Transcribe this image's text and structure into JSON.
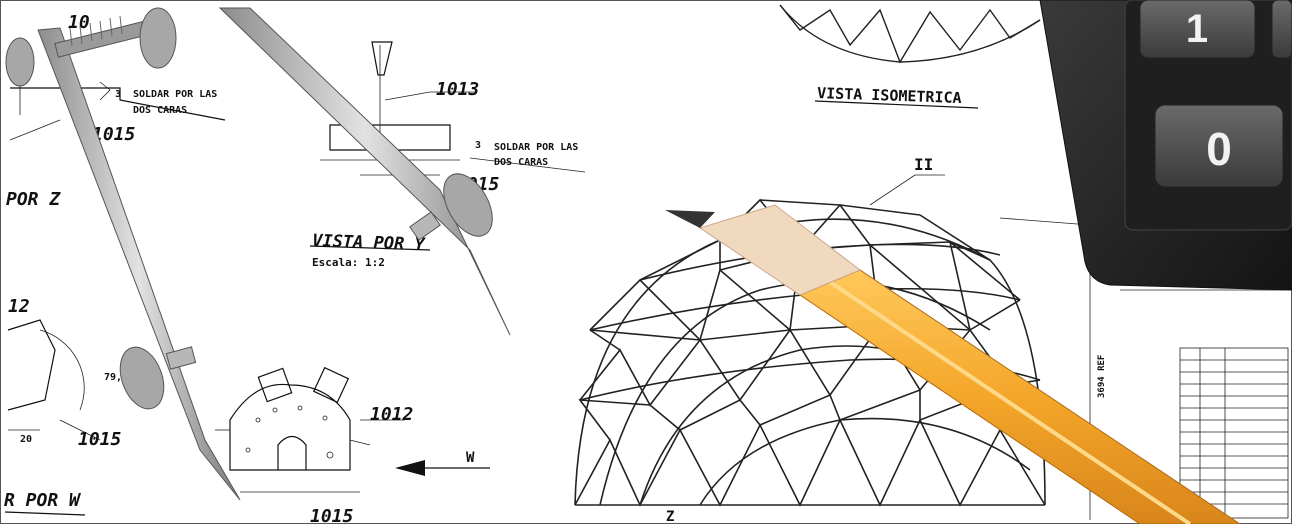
{
  "drawing": {
    "labels": {
      "l_10": "10",
      "l_1013": "1013",
      "l_1015_a": "1015",
      "l_1015_b": "1015",
      "l_1015_c": "1015",
      "l_1015_d": "1015",
      "l_1012": "1012",
      "l_12": "12",
      "l_20": "20",
      "l_79": "79,",
      "l_3a": "3",
      "l_3b": "3",
      "l_ii": "II",
      "l_w": "W",
      "l_z": "Z",
      "l_ref": "3694 REF"
    },
    "notes": {
      "soldar_1": "SOLDAR POR LAS",
      "soldar_1b": "DOS CARAS",
      "soldar_2": "SOLDAR POR LAS",
      "soldar_2b": "DOS CARAS"
    },
    "views": {
      "vista_y": "VISTA POR Y",
      "escala": "Escala:  1:2",
      "vista_iso": "VISTA ISOMETRICA",
      "por_z": "POR Z",
      "por_w": "R POR W"
    }
  },
  "calculator": {
    "key_top": "1",
    "key_zero": "0"
  },
  "colors": {
    "pencil_body": "#f4a62a",
    "pencil_wood": "#f1d9c0",
    "calculator": "#2a2a2a",
    "compass_metal": "#b9b9b9"
  },
  "icons": [
    "compass-tool-icon",
    "pencil-icon",
    "calculator-icon"
  ]
}
